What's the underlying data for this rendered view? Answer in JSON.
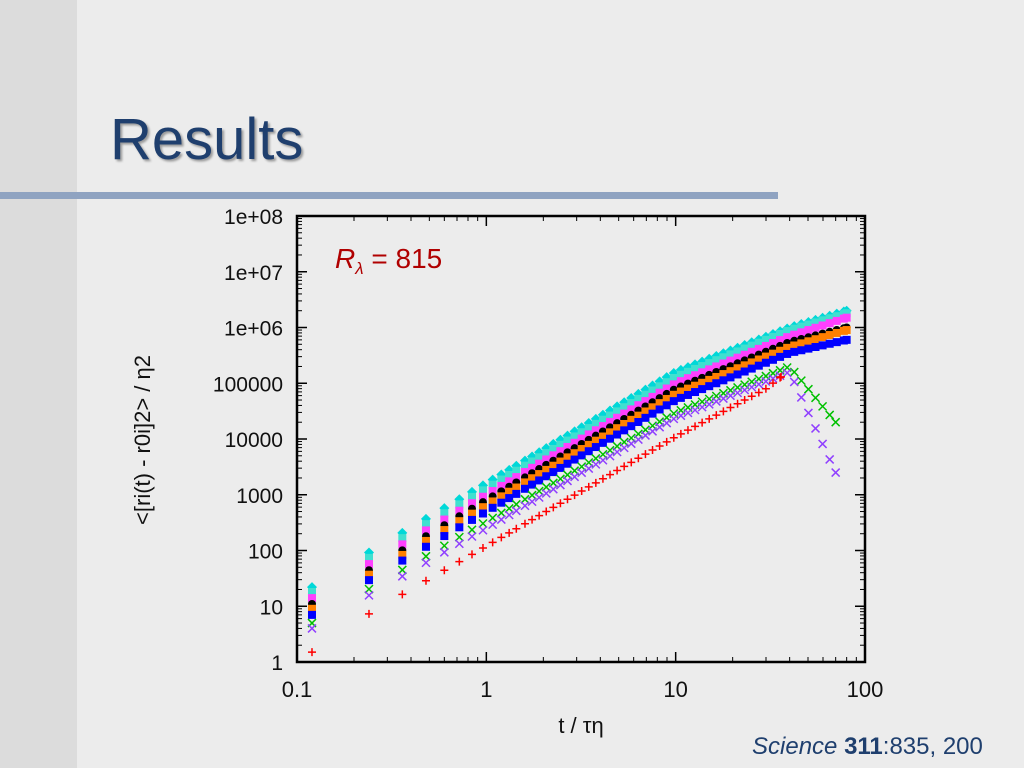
{
  "slide": {
    "title": "Results",
    "citation": {
      "journal": "Science",
      "volume": "311",
      "pages": ":835, 200"
    },
    "colors": {
      "title": "#1f3f6e",
      "rule": "#8fa3c1",
      "background": "#ececec",
      "band": "#dcdcdc"
    }
  },
  "chart_data": {
    "type": "scatter",
    "x_scale": "log",
    "y_scale": "log",
    "xlim": [
      0.1,
      100
    ],
    "ylim": [
      1,
      100000000
    ],
    "xticks": [
      "0.1",
      "1",
      "10",
      "100"
    ],
    "yticks": [
      "1",
      "10",
      "100",
      "1000",
      "10000",
      "100000",
      "1e+06",
      "1e+07",
      "1e+08"
    ],
    "xlabel": "t / τη",
    "ylabel": "<[ri(t) - r0i]2> / η2",
    "annotation": {
      "symbol": "R",
      "subscript": "λ",
      "rest": " = 815",
      "color": "#b00000"
    },
    "grid": false,
    "legend": "none",
    "series": [
      {
        "color": "#00d8d8",
        "marker": "diamond",
        "values": [
          [
            0.12,
            22
          ],
          [
            0.25,
            100
          ],
          [
            1,
            1600
          ],
          [
            10,
            160000
          ],
          [
            40,
            1000000
          ],
          [
            80,
            2000000
          ]
        ]
      },
      {
        "color": "#40e0d0",
        "marker": "square",
        "values": [
          [
            0.12,
            18
          ],
          [
            0.25,
            80
          ],
          [
            1,
            1300
          ],
          [
            10,
            130000
          ],
          [
            40,
            900000
          ],
          [
            80,
            1800000
          ]
        ]
      },
      {
        "color": "#ff40ff",
        "marker": "square",
        "values": [
          [
            0.12,
            14
          ],
          [
            0.25,
            62
          ],
          [
            1,
            1000
          ],
          [
            10,
            100000
          ],
          [
            40,
            700000
          ],
          [
            80,
            1500000
          ]
        ]
      },
      {
        "color": "#000000",
        "marker": "circle",
        "values": [
          [
            0.12,
            11
          ],
          [
            0.25,
            48
          ],
          [
            1,
            800
          ],
          [
            10,
            80000
          ],
          [
            40,
            550000
          ],
          [
            80,
            1000000
          ]
        ]
      },
      {
        "color": "#ff8000",
        "marker": "square",
        "values": [
          [
            0.12,
            9
          ],
          [
            0.25,
            40
          ],
          [
            1,
            650
          ],
          [
            10,
            65000
          ],
          [
            40,
            450000
          ],
          [
            80,
            900000
          ]
        ]
      },
      {
        "color": "#0000ff",
        "marker": "square",
        "values": [
          [
            0.12,
            7
          ],
          [
            0.25,
            32
          ],
          [
            1,
            500
          ],
          [
            10,
            50000
          ],
          [
            40,
            350000
          ],
          [
            80,
            600000
          ]
        ]
      },
      {
        "color": "#00c000",
        "marker": "x",
        "values": [
          [
            0.12,
            5
          ],
          [
            0.25,
            22
          ],
          [
            1,
            330
          ],
          [
            10,
            30000
          ],
          [
            40,
            200000
          ],
          [
            70,
            20000
          ]
        ]
      },
      {
        "color": "#9040ff",
        "marker": "x",
        "values": [
          [
            0.12,
            4
          ],
          [
            0.25,
            17
          ],
          [
            1,
            250
          ],
          [
            10,
            24000
          ],
          [
            40,
            160000
          ],
          [
            70,
            2500
          ]
        ]
      },
      {
        "color": "#ff0000",
        "marker": "plus",
        "values": [
          [
            0.12,
            1.5
          ],
          [
            0.25,
            8
          ],
          [
            1,
            120
          ],
          [
            10,
            11000
          ],
          [
            30,
            80000
          ],
          [
            36,
            130000
          ]
        ]
      }
    ]
  }
}
